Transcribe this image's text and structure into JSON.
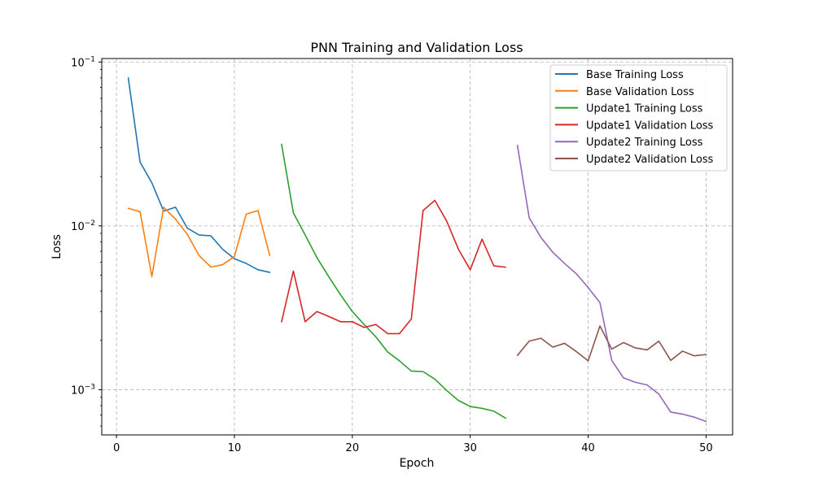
{
  "chart_data": {
    "type": "line",
    "title": "PNN Training and Validation Loss",
    "xlabel": "Epoch",
    "ylabel": "Loss",
    "xscale": "linear",
    "yscale": "log",
    "xlim": [
      -1.25,
      52.25
    ],
    "ylim": [
      0.00053,
      0.105
    ],
    "xticks": [
      0,
      10,
      20,
      30,
      40,
      50
    ],
    "xtick_labels": [
      "0",
      "10",
      "20",
      "30",
      "40",
      "50"
    ],
    "yticks": [
      0.1,
      0.01,
      0.001
    ],
    "ytick_labels": [
      {
        "base": "10",
        "exp": "−1"
      },
      {
        "base": "10",
        "exp": "−2"
      },
      {
        "base": "10",
        "exp": "−3"
      }
    ],
    "grid": true,
    "legend_position": "top-right",
    "series": [
      {
        "name": "Base Training Loss",
        "color": "#1f77b4",
        "x": [
          1,
          2,
          3,
          4,
          5,
          6,
          7,
          8,
          9,
          10,
          11,
          12,
          13
        ],
        "y": [
          0.08,
          0.0245,
          0.0183,
          0.0123,
          0.013,
          0.0097,
          0.0088,
          0.0087,
          0.0072,
          0.0063,
          0.0059,
          0.0054,
          0.0052
        ]
      },
      {
        "name": "Base Validation Loss",
        "color": "#ff7f0e",
        "x": [
          1,
          2,
          3,
          4,
          5,
          6,
          7,
          8,
          9,
          10,
          11,
          12,
          13
        ],
        "y": [
          0.0128,
          0.0122,
          0.0049,
          0.013,
          0.011,
          0.0089,
          0.0066,
          0.0056,
          0.0058,
          0.0065,
          0.0118,
          0.0124,
          0.0066
        ]
      },
      {
        "name": "Update1 Training Loss",
        "color": "#2ca02c",
        "x": [
          14,
          15,
          16,
          17,
          18,
          19,
          20,
          21,
          22,
          23,
          24,
          25,
          26,
          27,
          28,
          29,
          30,
          31,
          32,
          33
        ],
        "y": [
          0.0315,
          0.012,
          0.0088,
          0.0064,
          0.0049,
          0.0038,
          0.003,
          0.0025,
          0.0021,
          0.0017,
          0.0015,
          0.0013,
          0.00129,
          0.00116,
          0.00099,
          0.00086,
          0.00079,
          0.00077,
          0.00074,
          0.00067
        ]
      },
      {
        "name": "Update1 Validation Loss",
        "color": "#d62728",
        "x": [
          14,
          15,
          16,
          17,
          18,
          19,
          20,
          21,
          22,
          23,
          24,
          25,
          26,
          27,
          28,
          29,
          30,
          31,
          32,
          33
        ],
        "y": [
          0.0026,
          0.0053,
          0.0026,
          0.003,
          0.0028,
          0.0026,
          0.0026,
          0.0024,
          0.0025,
          0.0022,
          0.0022,
          0.0027,
          0.0124,
          0.0143,
          0.0107,
          0.0072,
          0.0054,
          0.0083,
          0.0057,
          0.0056
        ]
      },
      {
        "name": "Update2 Training Loss",
        "color": "#9467bd",
        "x": [
          34,
          35,
          36,
          37,
          38,
          39,
          40,
          41,
          42,
          43,
          44,
          45,
          46,
          47,
          48,
          49,
          50
        ],
        "y": [
          0.031,
          0.0112,
          0.0085,
          0.0069,
          0.0059,
          0.0051,
          0.0042,
          0.0034,
          0.00151,
          0.00118,
          0.00111,
          0.00107,
          0.00094,
          0.00073,
          0.00071,
          0.00068,
          0.00064
        ]
      },
      {
        "name": "Update2 Validation Loss",
        "color": "#8c564b",
        "x": [
          34,
          35,
          36,
          37,
          38,
          39,
          40,
          41,
          42,
          43,
          44,
          45,
          46,
          47,
          48,
          49,
          50
        ],
        "y": [
          0.00162,
          0.00198,
          0.00206,
          0.00182,
          0.00192,
          0.00171,
          0.0015,
          0.00245,
          0.00177,
          0.00194,
          0.0018,
          0.00175,
          0.00198,
          0.00151,
          0.00172,
          0.00161,
          0.00164
        ]
      }
    ]
  }
}
